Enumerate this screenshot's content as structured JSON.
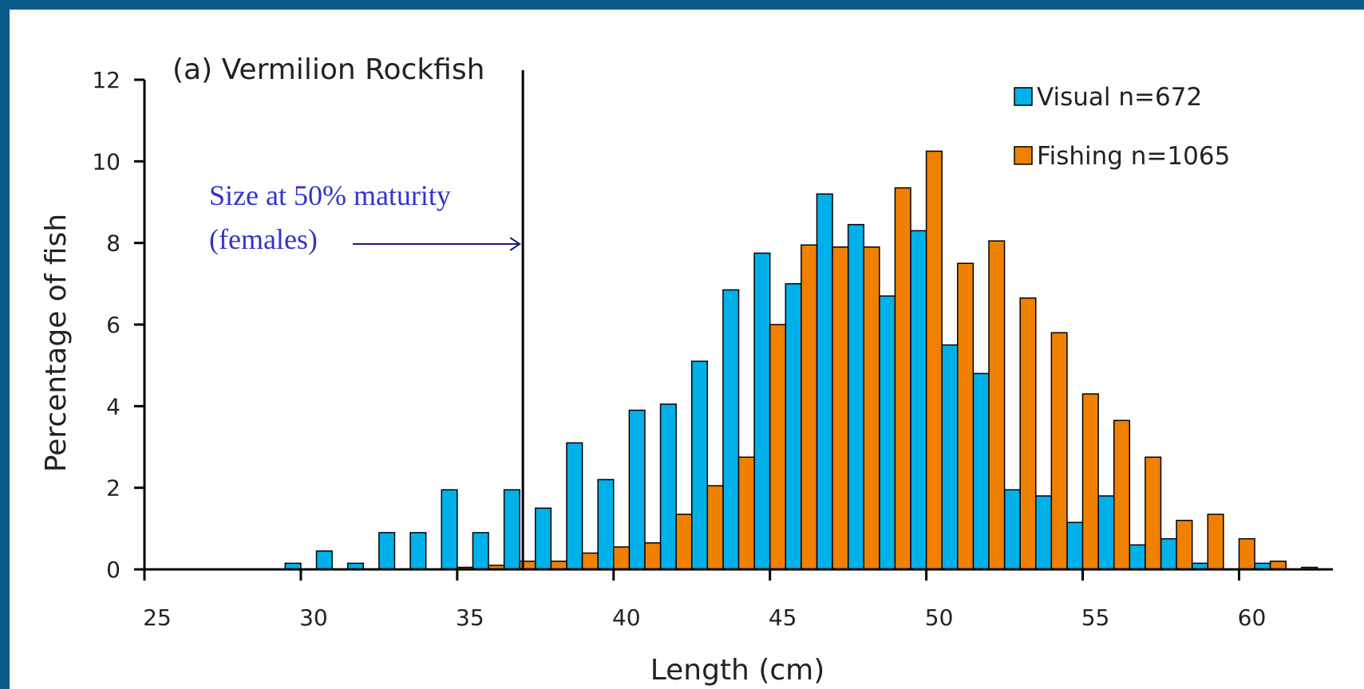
{
  "chart_data": {
    "type": "bar",
    "title": "(a) Vermilion Rockfish",
    "xlabel": "Length (cm)",
    "ylabel": "Percentage of fish",
    "xlim": [
      25,
      63
    ],
    "ylim": [
      0,
      12
    ],
    "xticks": [
      25,
      30,
      35,
      40,
      45,
      50,
      55,
      60
    ],
    "yticks": [
      0,
      2,
      4,
      6,
      8,
      10,
      12
    ],
    "grid": false,
    "legend_position": "top-right",
    "x": [
      30,
      31,
      32,
      33,
      34,
      35,
      36,
      37,
      38,
      39,
      40,
      41,
      42,
      43,
      44,
      45,
      46,
      47,
      48,
      49,
      50,
      51,
      52,
      53,
      54,
      55,
      56,
      57,
      58,
      59,
      60,
      61,
      62
    ],
    "series": [
      {
        "name": "Visual n=672",
        "color": "#00b0e8",
        "values": [
          0.15,
          0.45,
          0.15,
          0.9,
          0.9,
          1.95,
          0.9,
          1.95,
          1.5,
          3.1,
          2.2,
          3.9,
          4.05,
          5.1,
          6.85,
          7.75,
          7.0,
          9.2,
          8.45,
          6.7,
          8.3,
          5.5,
          4.8,
          1.95,
          1.8,
          1.15,
          1.8,
          0.6,
          0.75,
          0.15,
          0,
          0.15,
          0
        ]
      },
      {
        "name": "Fishing n=1065",
        "color": "#ef8000",
        "values": [
          0,
          0,
          0,
          0,
          0,
          0.05,
          0.1,
          0.2,
          0.2,
          0.4,
          0.55,
          0.65,
          1.35,
          2.05,
          2.75,
          6.0,
          7.95,
          7.9,
          7.9,
          9.35,
          10.25,
          7.5,
          8.05,
          6.65,
          5.8,
          4.3,
          3.65,
          2.75,
          1.2,
          1.35,
          0.75,
          0.2,
          0.05
        ]
      }
    ],
    "annotation": {
      "lines": [
        "Size at 50% maturity",
        "(females)"
      ],
      "marker_x": 37.1
    }
  }
}
